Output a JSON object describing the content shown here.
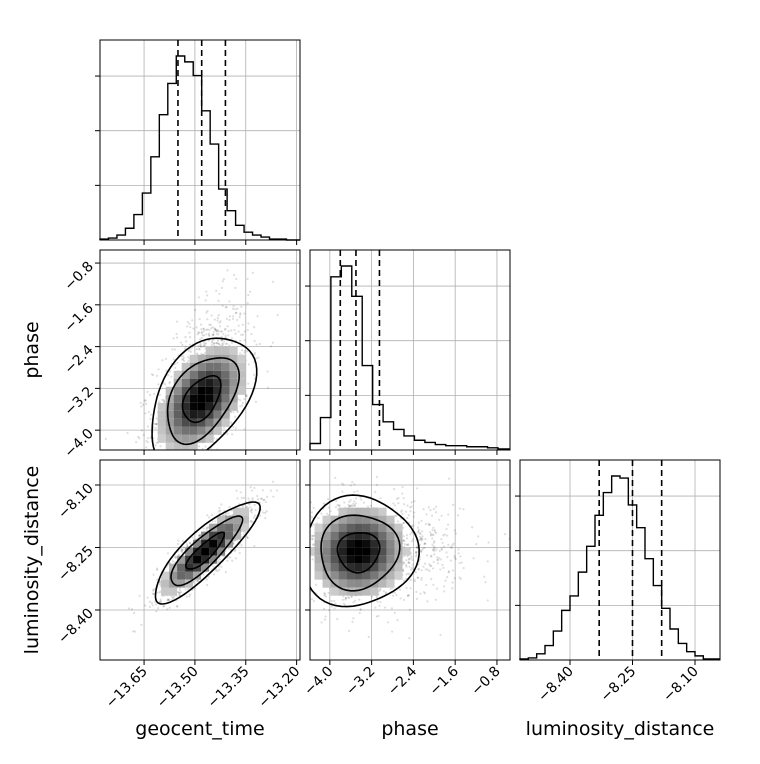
{
  "chart_data": {
    "type": "corner",
    "parameters": [
      "geocent_time",
      "phase",
      "luminosity_distance"
    ],
    "xlabels": [
      "geocent_time",
      "phase",
      "luminosity_distance"
    ],
    "ylabels": [
      "phase",
      "luminosity_distance"
    ],
    "ranges": {
      "geocent_time": [
        -13.78,
        -13.19
      ],
      "phase": [
        -4.38,
        -0.55
      ],
      "luminosity_distance": [
        -8.52,
        -8.04
      ]
    },
    "ticks": {
      "geocent_time": {
        "values": [
          -13.65,
          -13.5,
          -13.35,
          -13.2
        ],
        "labels": [
          "−13.65",
          "−13.50",
          "−13.35",
          "−13.20"
        ]
      },
      "phase": {
        "values": [
          -4.0,
          -3.2,
          -2.4,
          -1.6,
          -0.8
        ],
        "labels": [
          "−4.0",
          "−3.2",
          "−2.4",
          "−1.6",
          "−0.8"
        ]
      },
      "luminosity_distance": {
        "values": [
          -8.4,
          -8.25,
          -8.1
        ],
        "labels": [
          "−8.40",
          "−8.25",
          "−8.10"
        ]
      }
    },
    "quantiles": {
      "geocent_time": [
        -13.55,
        -13.48,
        -13.41
      ],
      "phase": [
        -3.8,
        -3.5,
        -3.05
      ],
      "luminosity_distance": [
        -8.33,
        -8.25,
        -8.18
      ]
    },
    "histograms": {
      "geocent_time": {
        "edges": [
          -13.78,
          -13.755,
          -13.73,
          -13.705,
          -13.68,
          -13.655,
          -13.63,
          -13.605,
          -13.58,
          -13.555,
          -13.53,
          -13.505,
          -13.48,
          -13.455,
          -13.43,
          -13.405,
          -13.38,
          -13.355,
          -13.33,
          -13.305,
          -13.28,
          -13.255,
          -13.23,
          -13.205,
          -13.19
        ],
        "counts": [
          1,
          2,
          5,
          12,
          26,
          48,
          85,
          128,
          160,
          188,
          182,
          168,
          132,
          98,
          52,
          30,
          15,
          8,
          5,
          3,
          1,
          1,
          0,
          0
        ]
      },
      "phase": {
        "edges": [
          -4.38,
          -4.18,
          -3.98,
          -3.78,
          -3.58,
          -3.38,
          -3.18,
          -2.98,
          -2.78,
          -2.58,
          -2.38,
          -2.18,
          -1.98,
          -1.78,
          -1.58,
          -1.38,
          -1.18,
          -0.98,
          -0.78,
          -0.55
        ],
        "counts": [
          6,
          30,
          160,
          170,
          142,
          78,
          42,
          26,
          19,
          13,
          9,
          7,
          5,
          4,
          4,
          3,
          3,
          2,
          1
        ]
      },
      "luminosity_distance": {
        "edges": [
          -8.52,
          -8.5,
          -8.48,
          -8.46,
          -8.44,
          -8.42,
          -8.4,
          -8.38,
          -8.36,
          -8.34,
          -8.32,
          -8.3,
          -8.28,
          -8.26,
          -8.24,
          -8.22,
          -8.2,
          -8.18,
          -8.16,
          -8.14,
          -8.12,
          -8.1,
          -8.08,
          -8.06,
          -8.04
        ],
        "counts": [
          1,
          2,
          6,
          14,
          28,
          48,
          62,
          85,
          110,
          140,
          162,
          178,
          176,
          150,
          128,
          98,
          72,
          50,
          30,
          16,
          8,
          4,
          1,
          1
        ]
      }
    },
    "joints": [
      {
        "x": "geocent_time",
        "y": "phase",
        "mean": [
          -13.48,
          -3.4
        ],
        "sd": [
          0.07,
          0.55
        ],
        "rho": 0.45
      },
      {
        "x": "geocent_time",
        "y": "luminosity_distance",
        "mean": [
          -13.47,
          -8.26
        ],
        "sd": [
          0.07,
          0.055
        ],
        "rho": 0.85
      },
      {
        "x": "phase",
        "y": "luminosity_distance",
        "mean": [
          -3.45,
          -8.26
        ],
        "sd": [
          0.5,
          0.06
        ],
        "rho": 0.05
      }
    ],
    "grid": true
  }
}
